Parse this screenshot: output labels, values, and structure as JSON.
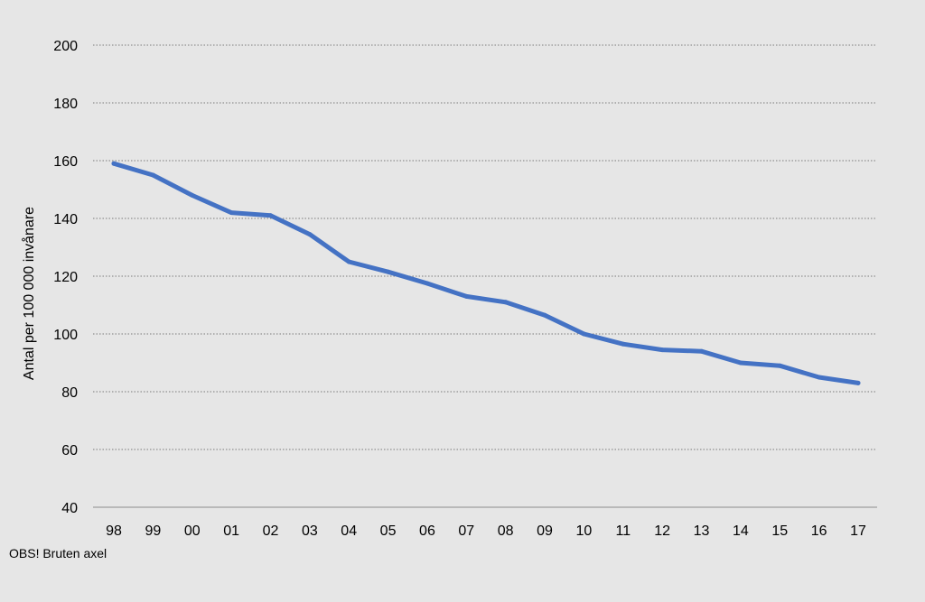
{
  "chart_data": {
    "type": "line",
    "categories": [
      "98",
      "99",
      "00",
      "01",
      "02",
      "03",
      "04",
      "05",
      "06",
      "07",
      "08",
      "09",
      "10",
      "11",
      "12",
      "13",
      "14",
      "15",
      "16",
      "17"
    ],
    "series": [
      {
        "values": [
          159,
          155,
          148,
          142,
          141,
          134.5,
          125,
          121.5,
          117.5,
          113,
          111,
          106.5,
          100,
          96.5,
          94.5,
          94,
          90,
          89,
          85,
          83
        ],
        "color": "#4472c4"
      }
    ],
    "title": "",
    "xlabel": "",
    "ylabel": "Antal per 100 000 invånare",
    "ylim": [
      40,
      200
    ],
    "yticks": [
      40,
      60,
      80,
      100,
      120,
      140,
      160,
      180,
      200
    ],
    "grid": true,
    "legend": "none"
  },
  "note": "OBS! Bruten axel"
}
